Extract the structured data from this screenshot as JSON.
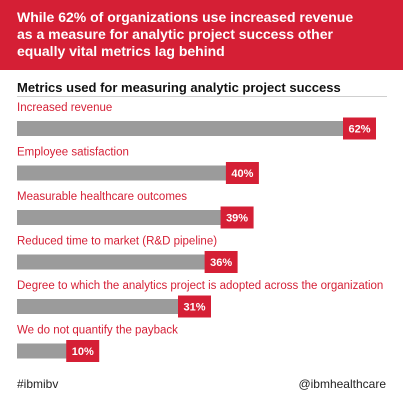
{
  "header": {
    "title": "While 62% of organizations use increased revenue\nas a measure for analytic project success other\nequally vital metrics lag behind"
  },
  "colors": {
    "brand_red": "#d51f35",
    "bar_gray": "#9b9b9b"
  },
  "chart_data": {
    "type": "bar",
    "orientation": "horizontal",
    "title": "Metrics used for measuring analytic project success",
    "xlabel": "",
    "ylabel": "",
    "xlim": [
      0,
      62
    ],
    "grid": false,
    "categories": [
      "Increased revenue",
      "Employee satisfaction",
      "Measurable healthcare outcomes",
      "Reduced time to market (R&D pipeline)",
      "Degree to which the analytics project is adopted across the organization",
      "We do not quantify the payback"
    ],
    "values": [
      62,
      40,
      39,
      36,
      31,
      10
    ],
    "value_labels": [
      "62%",
      "40%",
      "39%",
      "36%",
      "31%",
      "10%"
    ]
  },
  "footer": {
    "hashtag": "#ibmibv",
    "handle": "@ibmhealthcare"
  }
}
